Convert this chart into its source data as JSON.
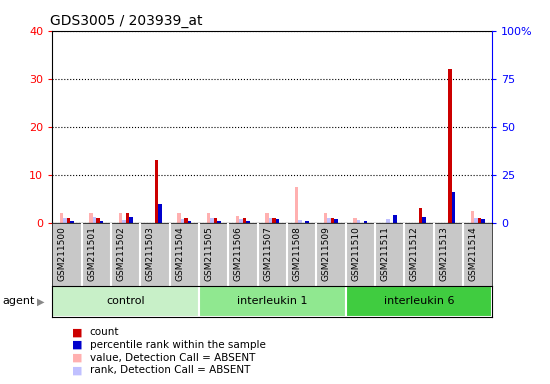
{
  "title": "GDS3005 / 203939_at",
  "samples": [
    "GSM211500",
    "GSM211501",
    "GSM211502",
    "GSM211503",
    "GSM211504",
    "GSM211505",
    "GSM211506",
    "GSM211507",
    "GSM211508",
    "GSM211509",
    "GSM211510",
    "GSM211511",
    "GSM211512",
    "GSM211513",
    "GSM211514"
  ],
  "groups": [
    {
      "label": "control",
      "start": 0,
      "end": 5,
      "color": "#c8f0c8"
    },
    {
      "label": "interleukin 1",
      "start": 5,
      "end": 10,
      "color": "#90e890"
    },
    {
      "label": "interleukin 6",
      "start": 10,
      "end": 15,
      "color": "#40cc40"
    }
  ],
  "count_values": [
    1,
    1,
    2,
    13,
    1,
    1,
    1,
    1,
    0,
    1,
    0,
    0,
    3,
    32,
    1
  ],
  "percentile_values": [
    1,
    1,
    3,
    10,
    1,
    1,
    1,
    2,
    1,
    2,
    1,
    4,
    3,
    16,
    2
  ],
  "absent_value_values": [
    2,
    2,
    2,
    0,
    2,
    2,
    1.5,
    2,
    7.5,
    2,
    1,
    0,
    0,
    0,
    2.5
  ],
  "absent_rank_values": [
    2.5,
    3,
    1.5,
    0,
    2,
    2.5,
    2,
    2.5,
    1.5,
    2.5,
    1.5,
    2,
    0,
    0,
    2.5
  ],
  "count_color": "#cc0000",
  "percentile_color": "#0000cc",
  "absent_value_color": "#ffb0b0",
  "absent_rank_color": "#c0c0ff",
  "ylim_left": [
    0,
    40
  ],
  "ylim_right": [
    0,
    100
  ],
  "yticks_left": [
    0,
    10,
    20,
    30,
    40
  ],
  "ytick_labels_right": [
    "0",
    "25",
    "50",
    "75",
    "100%"
  ],
  "bar_width": 0.12,
  "agent_label": "agent",
  "legend": [
    {
      "label": "count",
      "color": "#cc0000"
    },
    {
      "label": "percentile rank within the sample",
      "color": "#0000cc"
    },
    {
      "label": "value, Detection Call = ABSENT",
      "color": "#ffb0b0"
    },
    {
      "label": "rank, Detection Call = ABSENT",
      "color": "#c0c0ff"
    }
  ],
  "sample_bg_color": "#c8c8c8",
  "plot_bg_color": "#ffffff",
  "fig_width": 5.5,
  "fig_height": 3.84,
  "dpi": 100
}
